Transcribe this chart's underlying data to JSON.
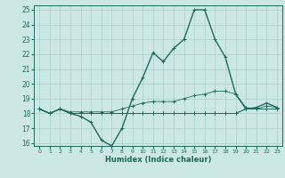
{
  "title": "",
  "xlabel": "Humidex (Indice chaleur)",
  "xlim": [
    -0.5,
    23.5
  ],
  "ylim": [
    15.8,
    25.3
  ],
  "yticks": [
    16,
    17,
    18,
    19,
    20,
    21,
    22,
    23,
    24,
    25
  ],
  "xticks": [
    0,
    1,
    2,
    3,
    4,
    5,
    6,
    7,
    8,
    9,
    10,
    11,
    12,
    13,
    14,
    15,
    16,
    17,
    18,
    19,
    20,
    21,
    22,
    23
  ],
  "bg_color": "#cce8e4",
  "grid_color": "#aacfcb",
  "line_color": "#1a6b5a",
  "lines": [
    {
      "x": [
        0,
        1,
        2,
        3,
        4,
        5,
        6,
        7,
        8,
        9,
        10,
        11,
        12,
        13,
        14,
        15,
        16,
        17,
        18,
        19,
        20,
        21,
        22,
        23
      ],
      "y": [
        18.3,
        18.0,
        18.3,
        18.0,
        17.8,
        17.4,
        16.2,
        15.8,
        17.0,
        19.0,
        20.4,
        22.1,
        21.5,
        22.4,
        23.0,
        25.0,
        25.0,
        23.0,
        21.8,
        19.3,
        18.3,
        18.4,
        18.7,
        18.4
      ]
    },
    {
      "x": [
        0,
        1,
        2,
        3,
        4,
        5,
        6,
        7,
        8,
        9,
        10,
        11,
        12,
        13,
        14,
        15,
        16,
        17,
        18,
        19,
        20,
        21,
        22,
        23
      ],
      "y": [
        18.3,
        18.0,
        18.3,
        18.1,
        18.1,
        18.1,
        18.1,
        18.1,
        18.3,
        18.5,
        18.7,
        18.8,
        18.8,
        18.8,
        19.0,
        19.2,
        19.3,
        19.5,
        19.5,
        19.3,
        18.4,
        18.3,
        18.5,
        18.4
      ]
    },
    {
      "x": [
        0,
        1,
        2,
        3,
        4,
        5,
        6,
        7,
        8,
        9,
        10,
        11,
        12,
        13,
        14,
        15,
        16,
        17,
        18,
        19,
        20,
        21,
        22,
        23
      ],
      "y": [
        18.3,
        18.0,
        18.3,
        18.0,
        18.0,
        18.0,
        18.0,
        18.0,
        18.0,
        18.0,
        18.0,
        18.0,
        18.0,
        18.0,
        18.0,
        18.0,
        18.0,
        18.0,
        18.0,
        18.0,
        18.3,
        18.3,
        18.3,
        18.3
      ]
    },
    {
      "x": [
        0,
        1,
        2,
        3,
        4,
        5,
        6,
        7,
        8,
        9,
        10,
        11,
        12,
        13,
        14,
        15,
        16,
        17,
        18,
        19,
        20,
        21,
        22,
        23
      ],
      "y": [
        18.3,
        18.0,
        18.3,
        18.0,
        18.0,
        18.0,
        18.0,
        18.0,
        18.0,
        18.0,
        18.0,
        18.0,
        18.0,
        18.0,
        18.0,
        18.0,
        18.0,
        18.0,
        18.0,
        18.0,
        18.3,
        18.3,
        18.3,
        18.3
      ]
    }
  ]
}
